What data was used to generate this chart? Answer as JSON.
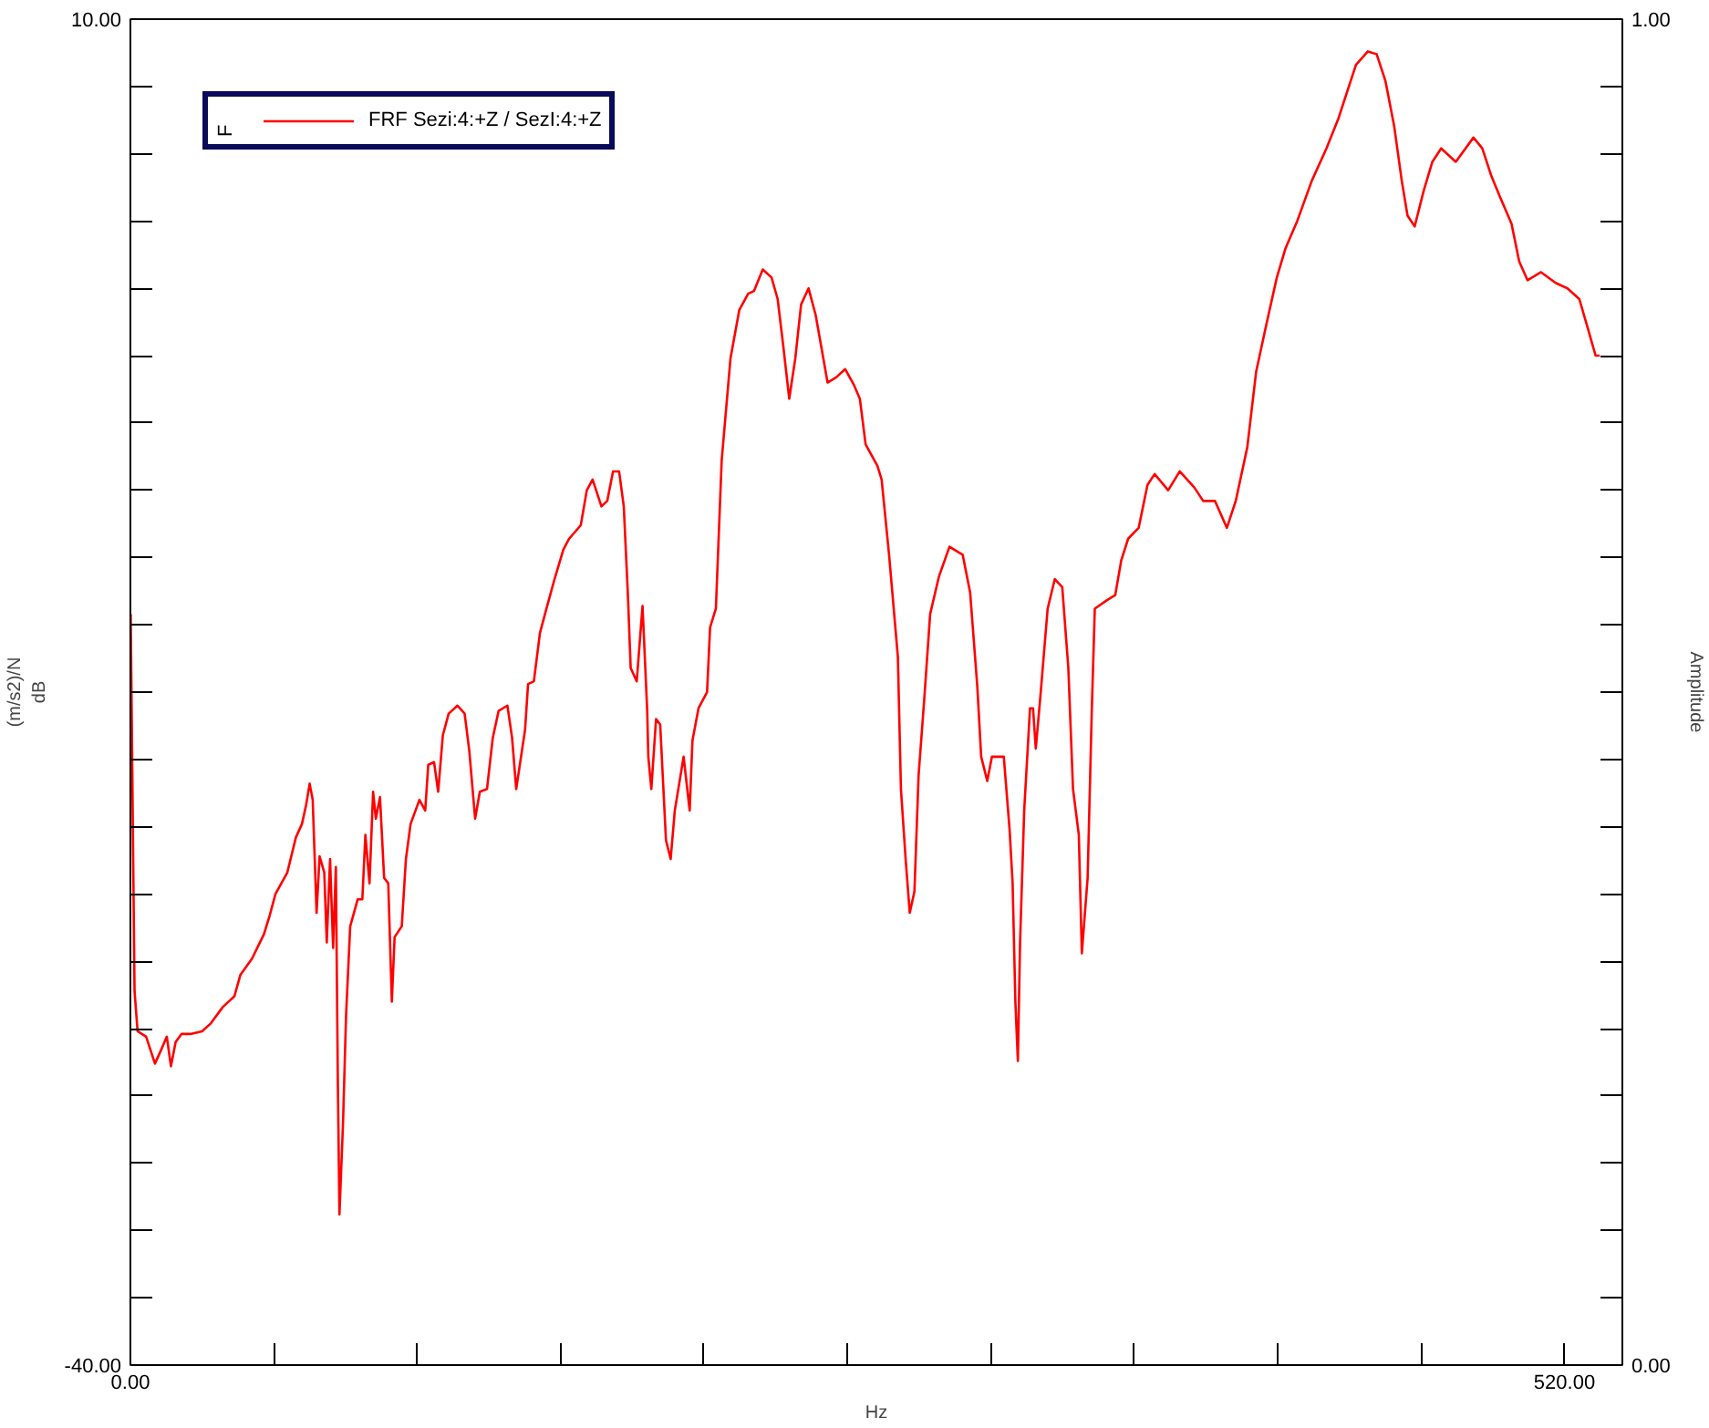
{
  "chart_data": {
    "type": "line",
    "xlabel": "Hz",
    "ylabel": "(m/s2)/N\ndB",
    "y2label": "Amplitude",
    "xlim": [
      0,
      541
    ],
    "ylim": [
      -40,
      10
    ],
    "y2lim": [
      0,
      1
    ],
    "xticks": [
      {
        "value": 0,
        "label": "0.00"
      },
      {
        "value": 52,
        "label": null
      },
      {
        "value": 104,
        "label": null
      },
      {
        "value": 156,
        "label": null
      },
      {
        "value": 208,
        "label": null
      },
      {
        "value": 260,
        "label": null
      },
      {
        "value": 312,
        "label": null
      },
      {
        "value": 364,
        "label": null
      },
      {
        "value": 416,
        "label": null
      },
      {
        "value": 468,
        "label": null
      },
      {
        "value": 520,
        "label": "520.00"
      }
    ],
    "yticks": [
      {
        "value": -40,
        "label": "-40.00"
      },
      {
        "value": -37.5,
        "label": null
      },
      {
        "value": -35,
        "label": null
      },
      {
        "value": -32.5,
        "label": null
      },
      {
        "value": -30,
        "label": null
      },
      {
        "value": -27.5,
        "label": null
      },
      {
        "value": -25,
        "label": null
      },
      {
        "value": -22.5,
        "label": null
      },
      {
        "value": -20,
        "label": null
      },
      {
        "value": -17.5,
        "label": null
      },
      {
        "value": -15,
        "label": null
      },
      {
        "value": -12.5,
        "label": null
      },
      {
        "value": -10,
        "label": null
      },
      {
        "value": -7.5,
        "label": null
      },
      {
        "value": -5,
        "label": null
      },
      {
        "value": -2.5,
        "label": null
      },
      {
        "value": 0,
        "label": null
      },
      {
        "value": 2.5,
        "label": null
      },
      {
        "value": 5,
        "label": null
      },
      {
        "value": 7.5,
        "label": null
      },
      {
        "value": 10,
        "label": "10.00"
      }
    ],
    "y2ticks": [
      {
        "value": 0,
        "label": "0.00"
      },
      {
        "value": 0.05,
        "label": null
      },
      {
        "value": 0.1,
        "label": null
      },
      {
        "value": 0.15,
        "label": null
      },
      {
        "value": 0.2,
        "label": null
      },
      {
        "value": 0.25,
        "label": null
      },
      {
        "value": 0.3,
        "label": null
      },
      {
        "value": 0.35,
        "label": null
      },
      {
        "value": 0.4,
        "label": null
      },
      {
        "value": 0.45,
        "label": null
      },
      {
        "value": 0.5,
        "label": null
      },
      {
        "value": 0.55,
        "label": null
      },
      {
        "value": 0.6,
        "label": null
      },
      {
        "value": 0.65,
        "label": null
      },
      {
        "value": 0.7,
        "label": null
      },
      {
        "value": 0.75,
        "label": null
      },
      {
        "value": 0.8,
        "label": null
      },
      {
        "value": 0.85,
        "label": null
      },
      {
        "value": 0.9,
        "label": null
      },
      {
        "value": 0.95,
        "label": null
      },
      {
        "value": 1,
        "label": "1.00"
      }
    ],
    "grid": false,
    "legend": "top left",
    "legend_title": "F",
    "series": [
      {
        "name": "FRF Sezi:4:+Z / SezI:4:+Z",
        "color": "#ff0000",
        "line_style": "solid",
        "x": [
          0.1,
          1.5,
          2.6,
          5.7,
          8.9,
          11.1,
          13.2,
          14.7,
          16.4,
          18.5,
          21.7,
          26.0,
          29.2,
          33.5,
          37.7,
          39.9,
          44.1,
          48.4,
          50.5,
          52.6,
          56.9,
          60.0,
          62.2,
          63.7,
          65.0,
          66.1,
          67.5,
          68.6,
          70.3,
          71.2,
          72.4,
          73.5,
          74.5,
          75.2,
          75.8,
          77.1,
          78.2,
          79.7,
          82.4,
          84.1,
          85.2,
          86.7,
          88.0,
          89.0,
          90.5,
          92.0,
          93.5,
          94.8,
          95.8,
          98.4,
          99.9,
          101.6,
          104.8,
          106.9,
          108.0,
          110.1,
          111.6,
          113.3,
          115.4,
          118.6,
          121.2,
          122.9,
          125.0,
          126.7,
          129.3,
          131.4,
          133.5,
          136.7,
          138.4,
          139.9,
          143.1,
          144.2,
          146.3,
          148.5,
          150.6,
          153.8,
          157.0,
          159.1,
          163.3,
          165.5,
          167.6,
          170.8,
          172.9,
          175.0,
          177.2,
          178.9,
          180.4,
          181.4,
          183.6,
          185.7,
          187.4,
          187.8,
          188.9,
          190.6,
          192.1,
          194.2,
          195.9,
          197.4,
          200.6,
          202.8,
          203.8,
          206.0,
          209.1,
          210.2,
          212.3,
          214.4,
          217.6,
          220.8,
          224.0,
          226.1,
          229.3,
          232.5,
          234.7,
          236.8,
          238.9,
          241.1,
          243.2,
          245.9,
          248.5,
          252.8,
          256.0,
          259.2,
          262.4,
          264.5,
          266.6,
          270.9,
          272.4,
          275.1,
          278.3,
          279.4,
          281.1,
          282.6,
          284.3,
          285.8,
          287.9,
          290.0,
          293.2,
          297.0,
          301.8,
          304.5,
          307.1,
          308.5,
          310.7,
          312.4,
          316.7,
          318.8,
          319.9,
          320.9,
          321.8,
          322.6,
          324.1,
          326.2,
          327.3,
          328.3,
          330.1,
          332.6,
          335.2,
          337.9,
          340.1,
          341.8,
          343.9,
          345.0,
          347.1,
          348.6,
          349.7,
          353.9,
          357.1,
          359.3,
          361.8,
          365.6,
          368.8,
          371.4,
          376.3,
          380.5,
          385.8,
          389.0,
          393.3,
          397.6,
          400.8,
          405.0,
          408.2,
          412.0,
          415.7,
          418.9,
          423.1,
          428.4,
          433.7,
          438.0,
          441.2,
          444.4,
          448.7,
          451.9,
          455.1,
          458.3,
          461.0,
          463.1,
          465.7,
          468.9,
          472.1,
          475.3,
          480.6,
          487.0,
          490.2,
          493.4,
          496.6,
          500.8,
          503.6,
          506.6,
          511.5,
          516.8,
          521.1,
          525.4,
          528.5,
          531.3,
          532.8
        ],
        "values": [
          -12.1,
          -26.1,
          -27.6,
          -27.8,
          -28.8,
          -28.3,
          -27.8,
          -28.9,
          -28.0,
          -27.7,
          -27.7,
          -27.6,
          -27.3,
          -26.7,
          -26.3,
          -25.5,
          -24.9,
          -24.0,
          -23.3,
          -22.5,
          -21.7,
          -20.4,
          -19.9,
          -19.2,
          -18.4,
          -19.0,
          -23.2,
          -21.1,
          -21.7,
          -24.3,
          -21.2,
          -24.5,
          -21.5,
          -29.3,
          -34.4,
          -31.0,
          -27.0,
          -23.7,
          -22.7,
          -22.7,
          -20.3,
          -22.1,
          -18.7,
          -19.7,
          -18.9,
          -21.9,
          -22.1,
          -26.5,
          -24.1,
          -23.7,
          -21.2,
          -19.9,
          -19.0,
          -19.4,
          -17.7,
          -17.6,
          -18.7,
          -16.6,
          -15.8,
          -15.5,
          -15.8,
          -17.2,
          -19.7,
          -18.7,
          -18.6,
          -16.7,
          -15.7,
          -15.5,
          -16.7,
          -18.6,
          -16.4,
          -14.7,
          -14.6,
          -12.8,
          -12.0,
          -10.8,
          -9.7,
          -9.3,
          -8.8,
          -7.5,
          -7.1,
          -8.1,
          -7.9,
          -6.8,
          -6.8,
          -8.1,
          -11.4,
          -14.1,
          -14.6,
          -11.8,
          -15.7,
          -17.4,
          -18.6,
          -16.0,
          -16.2,
          -20.5,
          -21.2,
          -19.4,
          -17.4,
          -19.4,
          -16.8,
          -15.6,
          -15.0,
          -12.6,
          -11.9,
          -6.4,
          -2.6,
          -0.8,
          -0.2,
          -0.1,
          0.7,
          0.4,
          -0.4,
          -2.2,
          -4.1,
          -2.6,
          -0.6,
          0.0,
          -1.0,
          -3.5,
          -3.3,
          -3.0,
          -3.6,
          -4.1,
          -5.8,
          -6.6,
          -7.1,
          -9.9,
          -13.7,
          -18.6,
          -21.2,
          -23.2,
          -22.4,
          -18.1,
          -15.2,
          -12.1,
          -10.7,
          -9.6,
          -9.9,
          -11.3,
          -14.8,
          -17.4,
          -18.3,
          -17.4,
          -17.4,
          -20.1,
          -22.1,
          -26.5,
          -28.7,
          -24.3,
          -19.4,
          -15.6,
          -15.6,
          -17.1,
          -15.0,
          -11.9,
          -10.8,
          -11.1,
          -14.1,
          -18.6,
          -20.3,
          -24.7,
          -21.9,
          -15.7,
          -11.9,
          -11.6,
          -11.4,
          -10.1,
          -9.3,
          -8.9,
          -7.3,
          -6.9,
          -7.5,
          -6.8,
          -7.4,
          -7.9,
          -7.9,
          -8.9,
          -7.9,
          -5.9,
          -3.1,
          -1.3,
          0.4,
          1.5,
          2.5,
          4.0,
          5.2,
          6.3,
          7.3,
          8.3,
          8.8,
          8.7,
          7.7,
          6.0,
          4.0,
          2.7,
          2.3,
          3.6,
          4.7,
          5.2,
          4.7,
          5.6,
          5.2,
          4.2,
          3.4,
          2.4,
          1.0,
          0.3,
          0.6,
          0.2,
          0.0,
          -0.4,
          -1.5,
          -2.5,
          -2.5
        ]
      }
    ]
  }
}
